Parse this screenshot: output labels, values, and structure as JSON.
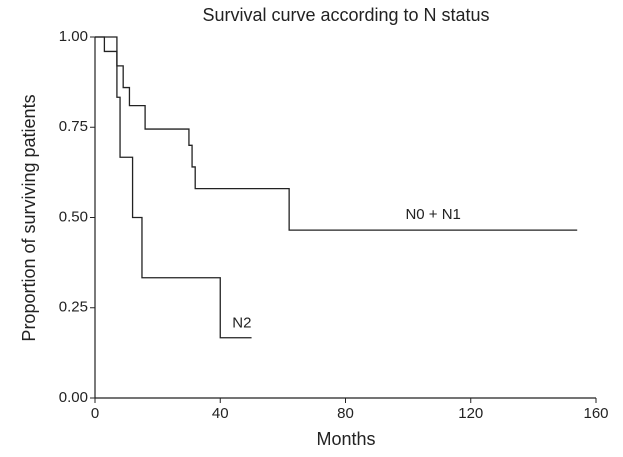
{
  "chart_data": {
    "type": "step",
    "title": "Survival curve according to N status",
    "x_label": "Months",
    "y_label": "Proportion of surviving patients",
    "xlim": [
      0,
      160
    ],
    "xticks": [
      0,
      40,
      80,
      120,
      160
    ],
    "ylim": [
      0,
      1
    ],
    "yticks": [
      {
        "value": 0,
        "label": "0.00"
      },
      {
        "value": 0.25,
        "label": "0.25"
      },
      {
        "value": 0.5,
        "label": "0.50"
      },
      {
        "value": 0.75,
        "label": "0.75"
      },
      {
        "value": 1,
        "label": "1.00"
      }
    ],
    "series": [
      {
        "name": "N0 + N1",
        "color": "#222222",
        "x": [
          0,
          3,
          7,
          9,
          11,
          16,
          30,
          31,
          32,
          62,
          154
        ],
        "values": [
          1,
          0.96,
          0.92,
          0.86,
          0.81,
          0.745,
          0.7,
          0.64,
          0.58,
          0.465,
          0.465
        ]
      },
      {
        "name": "N2",
        "color": "#222222",
        "x": [
          0,
          7,
          8,
          12,
          15,
          40,
          50
        ],
        "values": [
          1,
          0.833,
          0.667,
          0.5,
          0.333,
          0.167,
          0.167
        ]
      }
    ]
  }
}
